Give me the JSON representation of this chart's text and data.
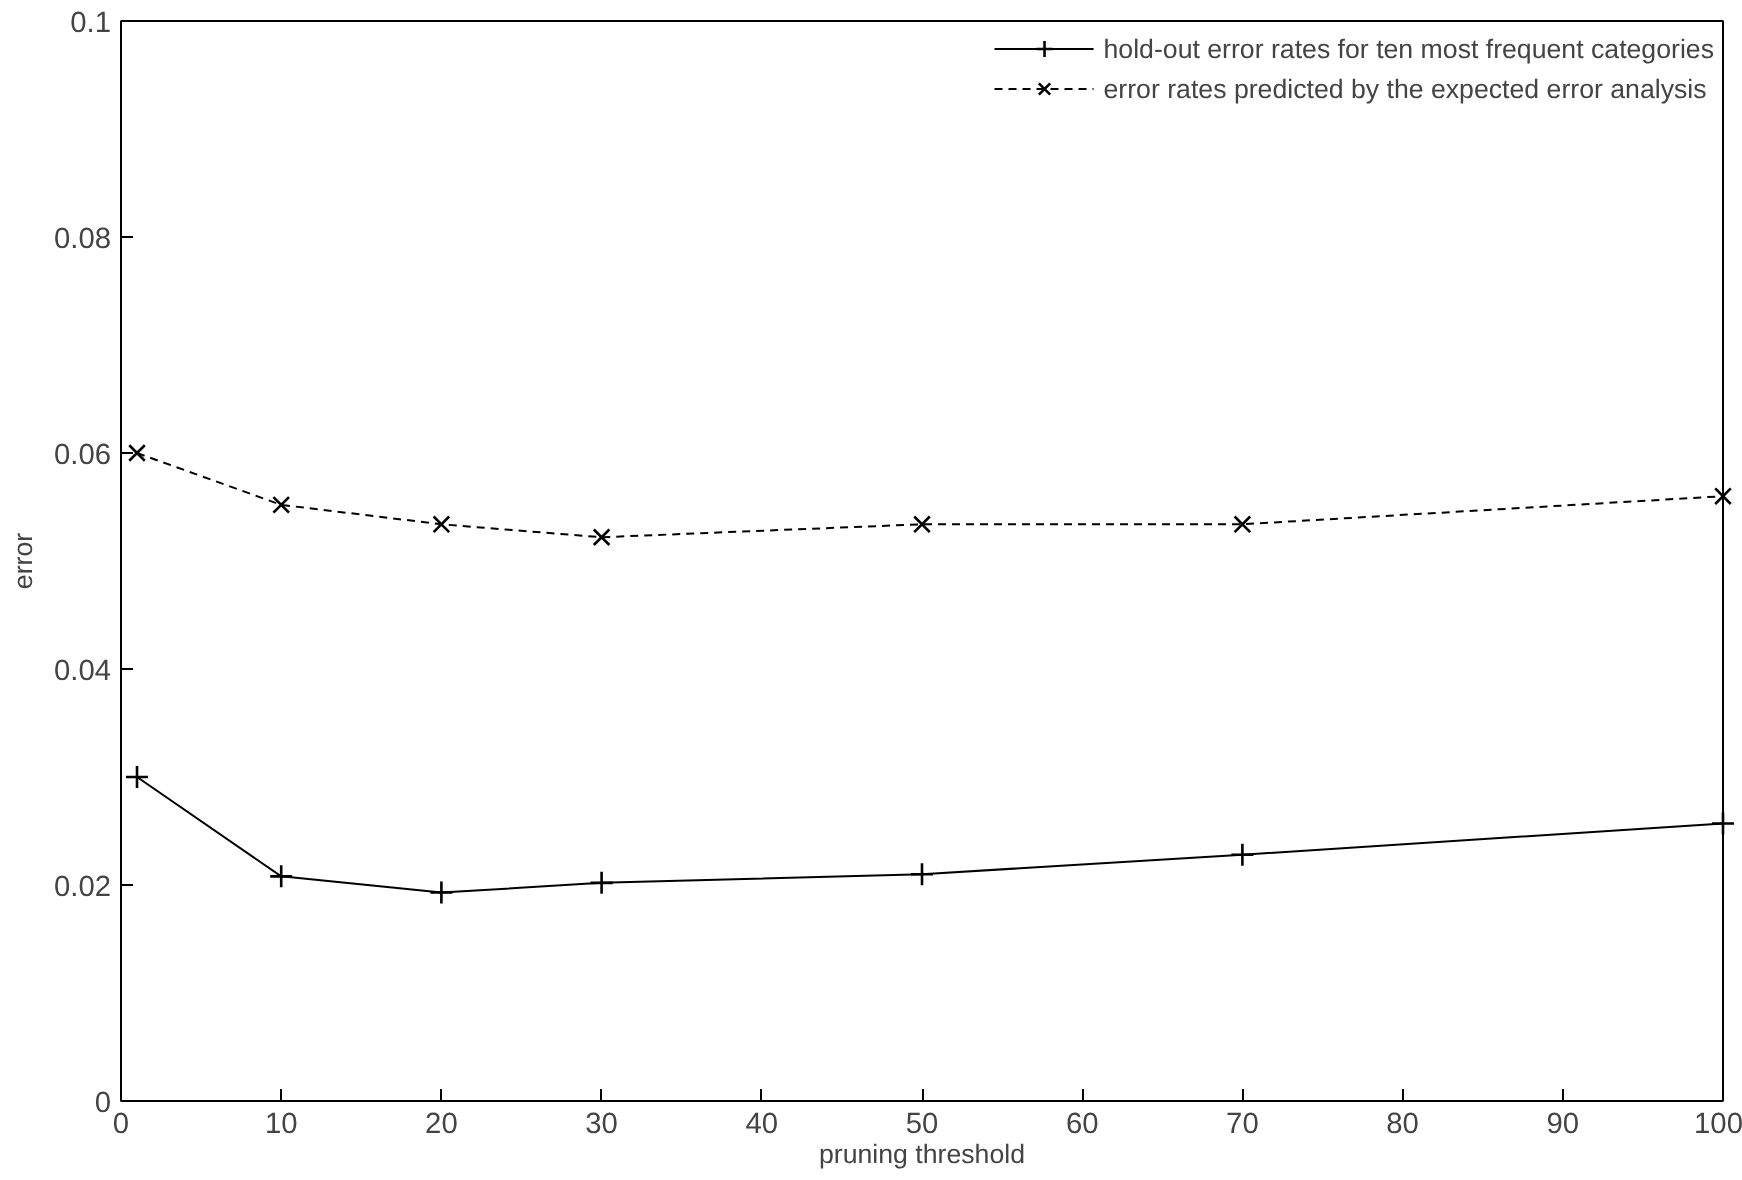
{
  "chart_data": {
    "type": "line",
    "xlabel": "pruning threshold",
    "ylabel": "error",
    "x": [
      1,
      10,
      20,
      30,
      50,
      70,
      100
    ],
    "series": [
      {
        "name": "hold-out error rates for ten most frequent categories",
        "color": "#000000",
        "marker": "cross",
        "line_style": "solid",
        "values": [
          0.03,
          0.0208,
          0.0193,
          0.0202,
          0.021,
          0.0228,
          0.0257
        ]
      },
      {
        "name": "error rates predicted by the expected error analysis",
        "color": "#000000",
        "marker": "x",
        "line_style": "dashed",
        "values": [
          0.06,
          0.0552,
          0.0534,
          0.0522,
          0.0534,
          0.0534,
          0.056
        ]
      }
    ],
    "xlim": [
      0,
      100
    ],
    "xticks": [
      0,
      10,
      20,
      30,
      40,
      50,
      60,
      70,
      80,
      90,
      100
    ],
    "ylim": [
      0,
      0.1
    ],
    "yticks": [
      0,
      0.02,
      0.04,
      0.06,
      0.08,
      0.1
    ],
    "grid": false,
    "legend": "top right"
  }
}
